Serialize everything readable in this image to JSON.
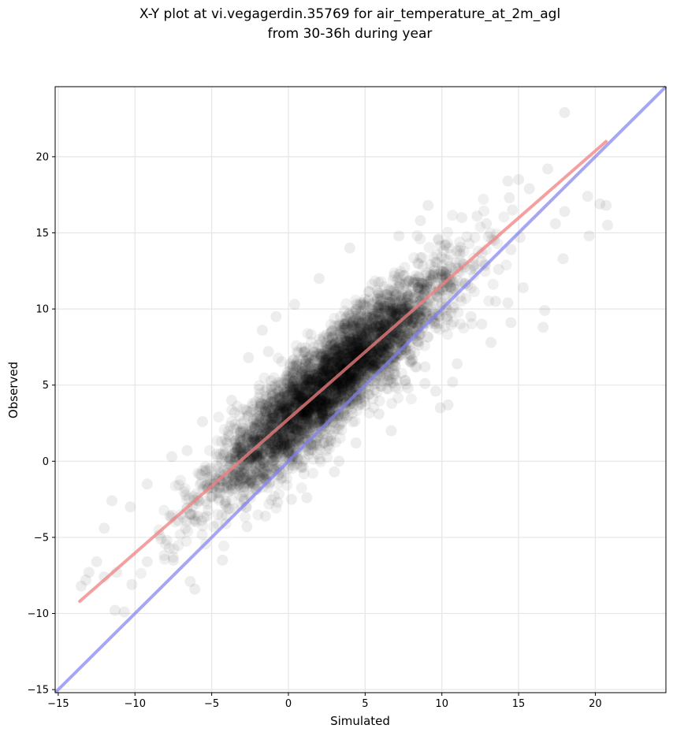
{
  "chart_data": {
    "type": "scatter",
    "title": "X-Y plot at vi.vegagerdin.35769 for air_temperature_at_2m_agl",
    "subtitle": "from 30-36h during year",
    "xlabel": "Simulated",
    "ylabel": "Observed",
    "xlim": [
      -15.2,
      24.6
    ],
    "ylim": [
      -15.2,
      24.6
    ],
    "xticks": [
      -15,
      -10,
      -5,
      0,
      5,
      10,
      15,
      20
    ],
    "yticks": [
      -15,
      -10,
      -5,
      0,
      5,
      10,
      15,
      20
    ],
    "xtick_labels": [
      "−15",
      "−10",
      "−5",
      "0",
      "5",
      "10",
      "15",
      "20"
    ],
    "ytick_labels": [
      "−15",
      "−10",
      "−5",
      "0",
      "5",
      "10",
      "15",
      "20"
    ],
    "grid": true,
    "point_color": "#000000",
    "point_alpha": 0.06,
    "points_sample": [
      [
        18.0,
        22.9
      ],
      [
        20.7,
        16.8
      ],
      [
        20.8,
        15.5
      ],
      [
        20.3,
        16.9
      ],
      [
        19.5,
        17.4
      ],
      [
        19.6,
        14.8
      ],
      [
        18.0,
        16.4
      ],
      [
        17.9,
        13.3
      ],
      [
        17.4,
        15.6
      ],
      [
        16.9,
        19.2
      ],
      [
        16.7,
        9.9
      ],
      [
        16.6,
        8.8
      ],
      [
        15.7,
        17.9
      ],
      [
        15.3,
        11.4
      ],
      [
        15.0,
        18.5
      ],
      [
        15.1,
        14.7
      ],
      [
        14.3,
        18.4
      ],
      [
        14.4,
        17.3
      ],
      [
        14.6,
        16.5
      ],
      [
        14.5,
        13.9
      ],
      [
        14.5,
        9.1
      ],
      [
        14.3,
        10.4
      ],
      [
        13.5,
        10.5
      ],
      [
        13.7,
        12.6
      ],
      [
        13.4,
        14.5
      ],
      [
        13.2,
        7.8
      ],
      [
        12.9,
        15.6
      ],
      [
        12.3,
        16.1
      ],
      [
        12.6,
        9.0
      ],
      [
        11.3,
        16.0
      ],
      [
        10.7,
        5.2
      ],
      [
        10.4,
        3.7
      ],
      [
        11.0,
        6.4
      ],
      [
        11.9,
        9.5
      ],
      [
        9.9,
        3.5
      ],
      [
        9.6,
        4.6
      ],
      [
        8.9,
        6.2
      ],
      [
        9.1,
        16.8
      ],
      [
        8.6,
        15.8
      ],
      [
        7.2,
        14.8
      ],
      [
        4.0,
        14.0
      ],
      [
        2.0,
        12.0
      ],
      [
        0.4,
        10.3
      ],
      [
        -0.8,
        9.5
      ],
      [
        -1.7,
        8.6
      ],
      [
        -1.3,
        7.2
      ],
      [
        -2.6,
        6.8
      ],
      [
        -3.7,
        4.0
      ],
      [
        -5.6,
        2.6
      ],
      [
        -6.6,
        0.7
      ],
      [
        -7.6,
        0.3
      ],
      [
        -9.2,
        -1.5
      ],
      [
        -10.3,
        -3.0
      ],
      [
        -11.5,
        -2.6
      ],
      [
        -12.0,
        -4.4
      ],
      [
        -12.5,
        -6.6
      ],
      [
        -13.0,
        -7.3
      ],
      [
        -13.2,
        -7.8
      ],
      [
        -13.5,
        -8.2
      ],
      [
        -12.0,
        -7.6
      ],
      [
        -11.2,
        -7.3
      ],
      [
        -11.3,
        -9.8
      ],
      [
        -10.7,
        -9.9
      ],
      [
        -10.2,
        -8.1
      ],
      [
        -9.2,
        -6.6
      ],
      [
        -8.3,
        -5.1
      ],
      [
        -7.5,
        -6.5
      ],
      [
        -6.4,
        -7.9
      ],
      [
        -6.1,
        -8.4
      ],
      [
        -4.3,
        -6.5
      ],
      [
        -2.7,
        -4.3
      ],
      [
        -1.5,
        -3.6
      ],
      [
        -0.7,
        -2.7
      ],
      [
        0.2,
        -2.5
      ],
      [
        1.2,
        -2.4
      ],
      [
        3.0,
        -0.7
      ],
      [
        3.3,
        0.0
      ],
      [
        4.4,
        1.2
      ],
      [
        5.9,
        3.1
      ],
      [
        6.7,
        2.0
      ],
      [
        7.8,
        4.8
      ],
      [
        8.9,
        5.1
      ],
      [
        -2.0,
        0.5
      ],
      [
        -0.5,
        2.5
      ],
      [
        0.5,
        3.0
      ],
      [
        1.5,
        4.0
      ],
      [
        2.5,
        5.2
      ],
      [
        3.5,
        6.5
      ],
      [
        4.5,
        7.5
      ],
      [
        5.5,
        8.8
      ],
      [
        6.5,
        9.5
      ],
      [
        7.5,
        10.5
      ],
      [
        8.5,
        11.4
      ],
      [
        9.5,
        12.3
      ]
    ],
    "fit_line": {
      "color": "#f08080",
      "x": [
        -13.6,
        20.7
      ],
      "y": [
        -9.2,
        21.0
      ]
    },
    "one_to_one_line": {
      "color": "#8080f0",
      "x": [
        -15.2,
        24.6
      ],
      "y": [
        -15.2,
        24.6
      ]
    }
  }
}
